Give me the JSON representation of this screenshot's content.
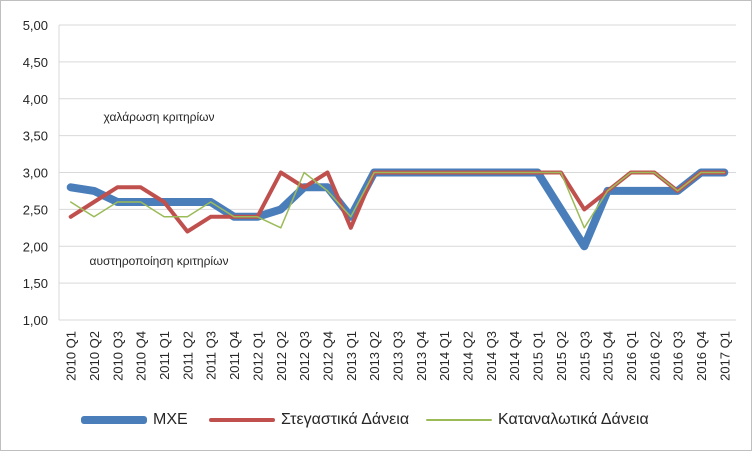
{
  "chart_data": {
    "type": "line",
    "title": "",
    "xlabel": "",
    "ylabel": "",
    "ylim": [
      1.0,
      5.0
    ],
    "ytick_step": 0.5,
    "grid": "horizontal",
    "legend_position": "bottom",
    "categories": [
      "2010 Q1",
      "2010 Q2",
      "2010 Q3",
      "2010 Q4",
      "2011 Q1",
      "2011 Q2",
      "2011 Q3",
      "2011 Q4",
      "2012 Q1",
      "2012 Q2",
      "2012 Q3",
      "2012 Q4",
      "2013 Q1",
      "2013 Q2",
      "2013 Q3",
      "2013 Q4",
      "2014 Q1",
      "2014 Q2",
      "2014 Q3",
      "2014 Q4",
      "2015 Q1",
      "2015 Q2",
      "2015 Q3",
      "2015 Q4",
      "2016 Q1",
      "2016 Q2",
      "2016 Q3",
      "2016 Q4",
      "2017 Q1"
    ],
    "yticks": [
      "1,00",
      "1,50",
      "2,00",
      "2,50",
      "3,00",
      "3,50",
      "4,00",
      "4,50",
      "5,00"
    ],
    "annotations": [
      {
        "text": "χαλάρωση κριτηρίων",
        "y": 3.75
      },
      {
        "text": "αυστηροποίηση κριτηρίων",
        "y": 1.8
      }
    ],
    "series": [
      {
        "name": "ΜΧΕ",
        "color": "#4a7ebb",
        "width": 8,
        "values": [
          2.8,
          2.75,
          2.6,
          2.6,
          2.6,
          2.6,
          2.6,
          2.4,
          2.4,
          2.5,
          2.8,
          2.8,
          2.4,
          3.0,
          3.0,
          3.0,
          3.0,
          3.0,
          3.0,
          3.0,
          3.0,
          2.5,
          2.0,
          2.75,
          2.75,
          2.75,
          2.75,
          3.0,
          3.0
        ]
      },
      {
        "name": "Στεγαστικά Δάνεια",
        "color": "#c0504d",
        "width": 4,
        "values": [
          2.4,
          2.6,
          2.8,
          2.8,
          2.6,
          2.2,
          2.4,
          2.4,
          2.4,
          3.0,
          2.8,
          3.0,
          2.25,
          3.0,
          3.0,
          3.0,
          3.0,
          3.0,
          3.0,
          3.0,
          3.0,
          3.0,
          2.5,
          2.75,
          3.0,
          3.0,
          2.75,
          3.0,
          3.0
        ]
      },
      {
        "name": "Καταναλωτικά Δάνεια",
        "color": "#9bbb59",
        "width": 1.5,
        "values": [
          2.6,
          2.4,
          2.6,
          2.6,
          2.4,
          2.4,
          2.6,
          2.4,
          2.4,
          2.25,
          3.0,
          2.75,
          2.4,
          3.0,
          3.0,
          3.0,
          3.0,
          3.0,
          3.0,
          3.0,
          3.0,
          3.0,
          2.25,
          2.75,
          3.0,
          3.0,
          2.75,
          3.0,
          3.0
        ]
      }
    ]
  }
}
